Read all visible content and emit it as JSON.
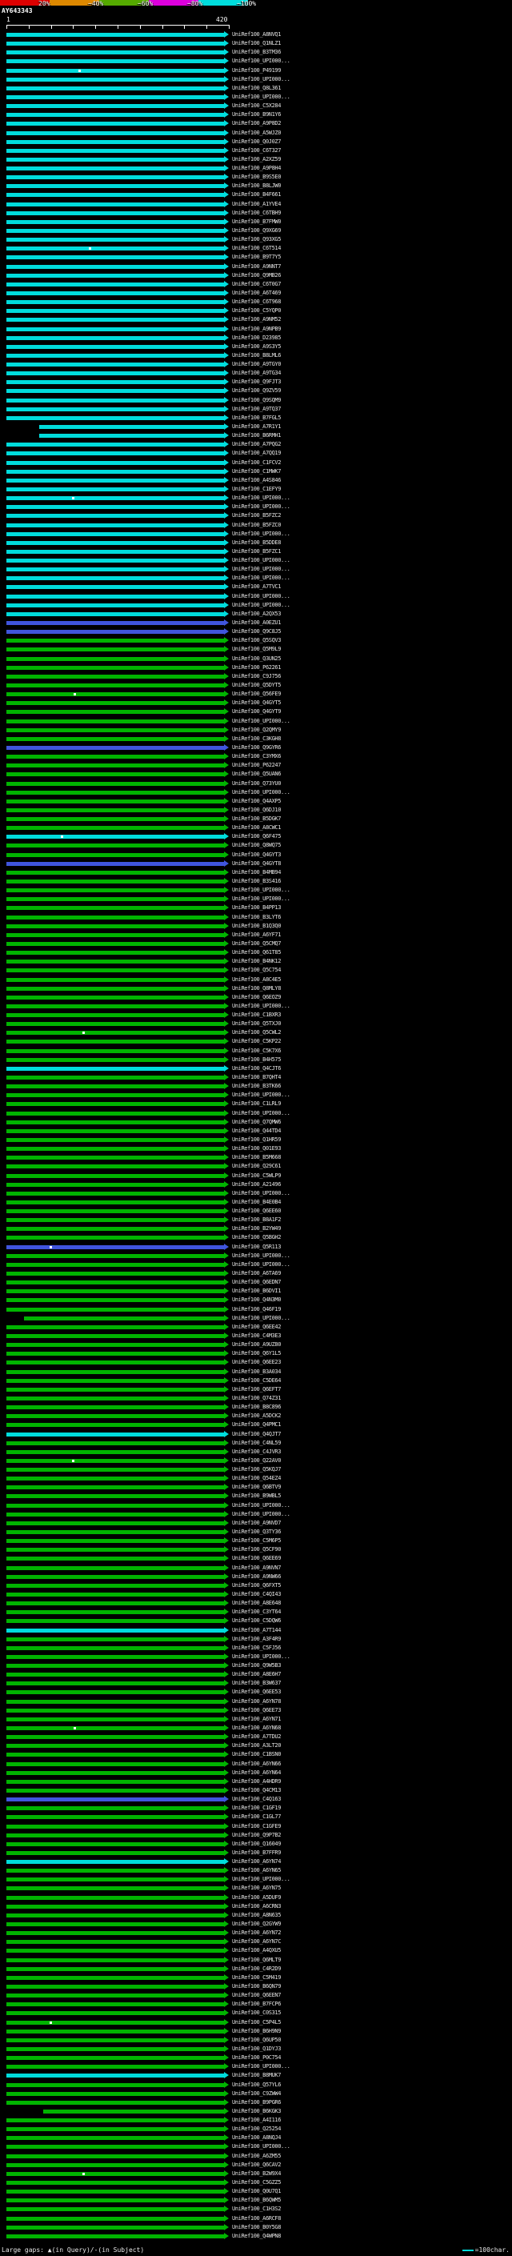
{
  "chart_data": {
    "type": "bar",
    "orientation": "horizontal",
    "x_range": [
      1,
      420
    ],
    "identity_scale": {
      "segments": [
        {
          "label": "20%",
          "color": "#dd0000"
        },
        {
          "label": "~40%",
          "color": "#dd8800"
        },
        {
          "label": "~60%",
          "color": "#55aa00"
        },
        {
          "label": "~80%",
          "color": "#dd00dd"
        },
        {
          "label": "~100%",
          "color": "#00dddd"
        }
      ]
    },
    "query": {
      "id": "AY643343",
      "ruler_start": "1",
      "ruler_end": "420"
    },
    "legend": {
      "gaps": "Large gaps: ▲(in Query)/-(in Subject)",
      "unit": "=100char."
    },
    "colors": {
      "c": "#00dcdc",
      "g": "#00b400",
      "b": "#4055dd"
    },
    "hit_prefix": "UniRef100_",
    "hits": [
      [
        "A8NVQ1",
        "c"
      ],
      [
        "Q1NLZ1",
        "c"
      ],
      [
        "B3TM36",
        "c"
      ],
      [
        "UPI000...",
        "c"
      ],
      [
        "P49199",
        "c",
        0,
        1,
        0.33
      ],
      [
        "UPI000...",
        "c"
      ],
      [
        "Q8L361",
        "c"
      ],
      [
        "UPI000...",
        "c"
      ],
      [
        "C5X284",
        "c"
      ],
      [
        "B9N1Y6",
        "c"
      ],
      [
        "A9P8D2",
        "c"
      ],
      [
        "A5WJZ0",
        "c"
      ],
      [
        "Q0J0Z7",
        "c"
      ],
      [
        "C6T327",
        "c"
      ],
      [
        "A2XZ59",
        "c"
      ],
      [
        "A9P8H4",
        "c"
      ],
      [
        "B9S5E0",
        "c"
      ],
      [
        "B8LJW0",
        "c"
      ],
      [
        "B4F661",
        "c"
      ],
      [
        "A1YVE4",
        "c"
      ],
      [
        "C6TBH9",
        "c"
      ],
      [
        "B7FMW0",
        "c"
      ],
      [
        "Q9XG69",
        "c"
      ],
      [
        "Q93XG5",
        "c"
      ],
      [
        "C6T514",
        "c",
        0,
        1,
        0.38
      ],
      [
        "B9T7Y5",
        "c"
      ],
      [
        "A9NNT7",
        "c"
      ],
      [
        "Q9MB26",
        "c"
      ],
      [
        "C6T0G7",
        "c"
      ],
      [
        "A6T469",
        "c"
      ],
      [
        "C6T968",
        "c"
      ],
      [
        "C5YQP0",
        "c"
      ],
      [
        "A9NM52",
        "c"
      ],
      [
        "A9NPB9",
        "c"
      ],
      [
        "D23985",
        "c"
      ],
      [
        "A9S3Y5",
        "c"
      ],
      [
        "B8LML6",
        "c"
      ],
      [
        "A9TGY0",
        "c"
      ],
      [
        "A9TG34",
        "c"
      ],
      [
        "Q9FJT3",
        "c"
      ],
      [
        "Q9ZV59",
        "c"
      ],
      [
        "Q9SQM9",
        "c"
      ],
      [
        "A9TQ37",
        "c"
      ],
      [
        "B7FGL5",
        "c"
      ],
      [
        "A7R1Y1",
        "c",
        0.15,
        1
      ],
      [
        "B6RMH1",
        "c",
        0.15,
        1
      ],
      [
        "A7PQG2",
        "c"
      ],
      [
        "A7QQ19",
        "c"
      ],
      [
        "C1FCV2",
        "c"
      ],
      [
        "C1MWK7",
        "c"
      ],
      [
        "A4S846",
        "c"
      ],
      [
        "C1EFY9",
        "c"
      ],
      [
        "UPI000...",
        "c",
        0,
        1,
        0.3
      ],
      [
        "UPI000...",
        "c"
      ],
      [
        "B5FZC2",
        "c"
      ],
      [
        "B5FZC0",
        "c"
      ],
      [
        "UPI000...",
        "c"
      ],
      [
        "B5DDE8",
        "c"
      ],
      [
        "B5FZC1",
        "c"
      ],
      [
        "UPI000...",
        "c"
      ],
      [
        "UPI000...",
        "c"
      ],
      [
        "UPI000...",
        "c"
      ],
      [
        "A7TVC1",
        "c"
      ],
      [
        "UPI000...",
        "c"
      ],
      [
        "UPI000...",
        "c"
      ],
      [
        "A2QX53",
        "c"
      ],
      [
        "A0EZU1",
        "b"
      ],
      [
        "Q9C8J5",
        "b"
      ],
      [
        "Q5SQV3",
        "g"
      ],
      [
        "Q5M9L9",
        "g"
      ],
      [
        "Q3UN25",
        "g"
      ],
      [
        "P62261",
        "g"
      ],
      [
        "C9J756",
        "g"
      ],
      [
        "Q5DYT5",
        "g"
      ],
      [
        "Q56FE9",
        "g",
        0,
        1,
        0.31
      ],
      [
        "Q4GYT5",
        "g"
      ],
      [
        "Q4GYT9",
        "g"
      ],
      [
        "UPI000...",
        "g"
      ],
      [
        "Q2QMY9",
        "g"
      ],
      [
        "C3KGH8",
        "g"
      ],
      [
        "Q9GYR6",
        "b"
      ],
      [
        "C3YMX6",
        "g"
      ],
      [
        "P62247",
        "g"
      ],
      [
        "Q5UAN6",
        "g"
      ],
      [
        "Q73YU0",
        "g"
      ],
      [
        "UPI000...",
        "g"
      ],
      [
        "Q4AXP5",
        "g"
      ],
      [
        "Q6DJ10",
        "g"
      ],
      [
        "B5DGK7",
        "g"
      ],
      [
        "A8CWC1",
        "g"
      ],
      [
        "Q6F475",
        "c",
        0,
        1,
        0.25
      ],
      [
        "Q8WQ75",
        "g"
      ],
      [
        "Q4GYT3",
        "g"
      ],
      [
        "Q4GYT8",
        "b"
      ],
      [
        "B4MB94",
        "g"
      ],
      [
        "B3S416",
        "g"
      ],
      [
        "UPI000...",
        "g"
      ],
      [
        "UPI000...",
        "g"
      ],
      [
        "B4PP13",
        "g"
      ],
      [
        "B3LYT6",
        "g"
      ],
      [
        "B1Q3Q0",
        "g"
      ],
      [
        "A6YF71",
        "g"
      ],
      [
        "Q5CMQ7",
        "g"
      ],
      [
        "Q61T85",
        "g"
      ],
      [
        "B4NK12",
        "g"
      ],
      [
        "Q5C754",
        "g"
      ],
      [
        "A8C4E5",
        "g"
      ],
      [
        "Q8MLY8",
        "g"
      ],
      [
        "Q6EOZ9",
        "g"
      ],
      [
        "UPI000...",
        "g"
      ],
      [
        "C1BXR3",
        "g"
      ],
      [
        "Q5TXJ0",
        "g"
      ],
      [
        "Q5CWL2",
        "g",
        0,
        1,
        0.35
      ],
      [
        "C5KP22",
        "g"
      ],
      [
        "C5K7X6",
        "g"
      ],
      [
        "B4H575",
        "g"
      ],
      [
        "Q4CJT6",
        "c"
      ],
      [
        "B7QHT4",
        "g"
      ],
      [
        "B3TK66",
        "g"
      ],
      [
        "UPI000...",
        "g"
      ],
      [
        "C1LRL9",
        "g"
      ],
      [
        "UPI000...",
        "g"
      ],
      [
        "Q7QMW6",
        "g"
      ],
      [
        "Q44TD4",
        "g"
      ],
      [
        "Q1HR59",
        "g"
      ],
      [
        "Q01E93",
        "g"
      ],
      [
        "B5M668",
        "g"
      ],
      [
        "Q29C61",
        "g"
      ],
      [
        "C5WLP9",
        "g"
      ],
      [
        "A21496",
        "g"
      ],
      [
        "UPI000...",
        "g"
      ],
      [
        "B4E0B4",
        "g"
      ],
      [
        "Q6EE60",
        "g"
      ],
      [
        "B8A1F2",
        "g"
      ],
      [
        "B2YW49",
        "g"
      ],
      [
        "Q5BGH2",
        "g"
      ],
      [
        "Q5R113",
        "b",
        0,
        1,
        0.2
      ],
      [
        "UPI000...",
        "g"
      ],
      [
        "UPI000...",
        "g"
      ],
      [
        "A6TA69",
        "g"
      ],
      [
        "Q6EDN7",
        "g"
      ],
      [
        "B6DVI1",
        "g"
      ],
      [
        "Q4N3M0",
        "g"
      ],
      [
        "Q46F19",
        "g"
      ],
      [
        "UPI000...",
        "g",
        0.08,
        1
      ],
      [
        "Q6EE42",
        "g"
      ],
      [
        "C4M3E3",
        "g"
      ],
      [
        "A9UZ80",
        "g"
      ],
      [
        "Q6Y1L5",
        "g"
      ],
      [
        "Q6EE23",
        "g"
      ],
      [
        "B3A034",
        "g"
      ],
      [
        "C5DE64",
        "g"
      ],
      [
        "Q6EFT7",
        "g"
      ],
      [
        "Q74Z31",
        "g"
      ],
      [
        "B8C896",
        "g"
      ],
      [
        "A5DCK2",
        "g"
      ],
      [
        "Q4PMC1",
        "g"
      ],
      [
        "Q4QJT7",
        "c"
      ],
      [
        "C4NL59",
        "g"
      ],
      [
        "C4JVR3",
        "g"
      ],
      [
        "Q22AV0",
        "g",
        0,
        1,
        0.3
      ],
      [
        "Q5KQJ7",
        "g"
      ],
      [
        "Q54EZ4",
        "g"
      ],
      [
        "Q6BTV9",
        "g"
      ],
      [
        "B9WBL5",
        "g"
      ],
      [
        "UPI000...",
        "g"
      ],
      [
        "UPI000...",
        "g"
      ],
      [
        "A9NVD7",
        "g"
      ],
      [
        "Q3TY36",
        "g"
      ],
      [
        "C5M6P5",
        "g"
      ],
      [
        "Q5CF90",
        "g"
      ],
      [
        "Q6EE69",
        "g"
      ],
      [
        "A9NVN7",
        "g"
      ],
      [
        "A9NW66",
        "g"
      ],
      [
        "Q6FXT5",
        "g"
      ],
      [
        "C4QI43",
        "g"
      ],
      [
        "A8E648",
        "g"
      ],
      [
        "C3YT64",
        "g"
      ],
      [
        "C5DQW6",
        "g"
      ],
      [
        "A7T144",
        "c"
      ],
      [
        "A3F4R9",
        "g"
      ],
      [
        "C5FJ56",
        "g"
      ],
      [
        "UPI000...",
        "g"
      ],
      [
        "Q9W5B3",
        "g"
      ],
      [
        "A8E6H7",
        "g"
      ],
      [
        "B3W637",
        "g"
      ],
      [
        "Q6EE53",
        "g"
      ],
      [
        "A6YN78",
        "g"
      ],
      [
        "Q6EE73",
        "g"
      ],
      [
        "A6YN71",
        "g"
      ],
      [
        "A6YN68",
        "g",
        0,
        1,
        0.31
      ],
      [
        "A7TDU2",
        "g"
      ],
      [
        "A3LT20",
        "g"
      ],
      [
        "C1BSN0",
        "g"
      ],
      [
        "A6YN66",
        "g"
      ],
      [
        "A6YN64",
        "g"
      ],
      [
        "A4HDR9",
        "g"
      ],
      [
        "Q4CM13",
        "g"
      ],
      [
        "C4Q163",
        "b"
      ],
      [
        "C1GF19",
        "g"
      ],
      [
        "C1GL77",
        "g"
      ],
      [
        "C1GFE9",
        "g"
      ],
      [
        "Q9P7B2",
        "g"
      ],
      [
        "Q16049",
        "g"
      ],
      [
        "B7FFR9",
        "g"
      ],
      [
        "A6YN74",
        "c"
      ],
      [
        "A6YN65",
        "g"
      ],
      [
        "UPI000...",
        "g"
      ],
      [
        "A6YN75",
        "g"
      ],
      [
        "A5DUF9",
        "g"
      ],
      [
        "A6CRN3",
        "g"
      ],
      [
        "A8N635",
        "g"
      ],
      [
        "Q2GYW9",
        "g"
      ],
      [
        "A6YN72",
        "g"
      ],
      [
        "A6YN7C",
        "g"
      ],
      [
        "A4QXU5",
        "g"
      ],
      [
        "Q6MLT9",
        "g"
      ],
      [
        "C4R2D9",
        "g"
      ],
      [
        "C5M419",
        "g"
      ],
      [
        "B6QN79",
        "g"
      ],
      [
        "Q6EEN7",
        "g"
      ],
      [
        "B7FCP6",
        "g"
      ],
      [
        "C0S315",
        "g"
      ],
      [
        "C5P4L5",
        "g",
        0,
        1,
        0.2
      ],
      [
        "B6H9N9",
        "g"
      ],
      [
        "Q6UP50",
        "g"
      ],
      [
        "Q1DYJ3",
        "g"
      ],
      [
        "P0C754",
        "g"
      ],
      [
        "UPI000...",
        "g"
      ],
      [
        "B8MUK7",
        "c"
      ],
      [
        "Q57YL6",
        "g"
      ],
      [
        "C9ZWW4",
        "g"
      ],
      [
        "B9PGR6",
        "g"
      ],
      [
        "B6KGK3",
        "g",
        0.17,
        1
      ],
      [
        "A4I116",
        "g"
      ],
      [
        "Q25254",
        "g"
      ],
      [
        "A8NQJ4",
        "g"
      ],
      [
        "UPI000...",
        "g"
      ],
      [
        "A6ZM55",
        "g"
      ],
      [
        "Q6CAV2",
        "g"
      ],
      [
        "B2W9X4",
        "g",
        0,
        1,
        0.35
      ],
      [
        "C5GZZ5",
        "g"
      ],
      [
        "Q0U7Q1",
        "g"
      ],
      [
        "B6QWM5",
        "g"
      ],
      [
        "C1H3S2",
        "g"
      ],
      [
        "A6RCF8",
        "g"
      ],
      [
        "B0Y5G8",
        "g"
      ],
      [
        "Q4WPN8",
        "g"
      ]
    ]
  }
}
